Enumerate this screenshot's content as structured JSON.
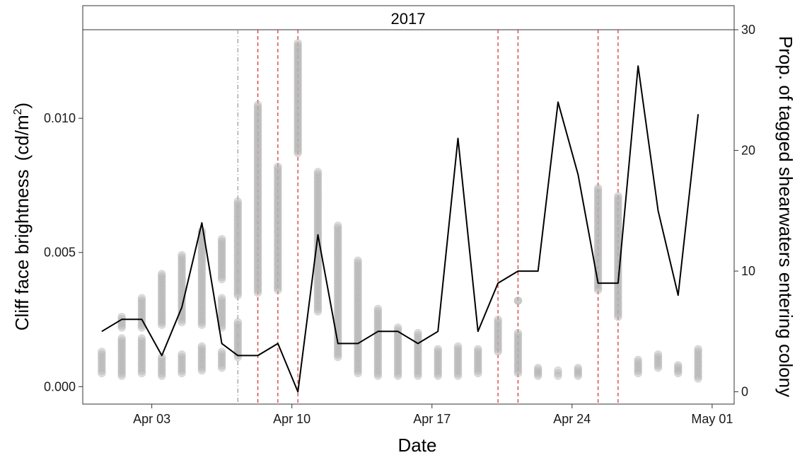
{
  "chart_data": {
    "type": "scatter",
    "facet_label": "2017",
    "xlabel": "Date",
    "ylabel": "Cliff face brightness",
    "ylabel_unit": "(cd/m",
    "ylabel_unit_sup": "2",
    "ylabel_unit_close": ")",
    "y2label": "Prop. of tagged shearwaters entering colony",
    "x_ticks": [
      {
        "day": 3,
        "label": "Apr 03"
      },
      {
        "day": 10,
        "label": "Apr 10"
      },
      {
        "day": 17,
        "label": "Apr 17"
      },
      {
        "day": 24,
        "label": "Apr 24"
      },
      {
        "day": 31,
        "label": "May 01"
      }
    ],
    "y_ticks": [
      {
        "value": 0.0,
        "label": "0.000"
      },
      {
        "value": 0.005,
        "label": "0.005"
      },
      {
        "value": 0.01,
        "label": "0.010"
      }
    ],
    "y2_ticks": [
      {
        "value": 0,
        "label": "0"
      },
      {
        "value": 10,
        "label": "10"
      },
      {
        "value": 20,
        "label": "20"
      },
      {
        "value": 30,
        "label": "30"
      }
    ],
    "xlim": [
      -0.45,
      32.1
    ],
    "ylim": [
      -0.00065,
      0.0133
    ],
    "y2lim": [
      -1.02,
      30
    ],
    "grid": false,
    "vlines": [
      {
        "day": 7.3,
        "color": "#999999",
        "style": "dashdot"
      },
      {
        "day": 8.3,
        "color": "#d62728",
        "style": "dashed"
      },
      {
        "day": 9.3,
        "color": "#d62728",
        "style": "dashed"
      },
      {
        "day": 10.3,
        "color": "#d62728",
        "style": "dashed"
      },
      {
        "day": 20.3,
        "color": "#d62728",
        "style": "dashed"
      },
      {
        "day": 21.3,
        "color": "#d62728",
        "style": "dashed"
      },
      {
        "day": 25.3,
        "color": "#d62728",
        "style": "dashed"
      },
      {
        "day": 26.3,
        "color": "#d62728",
        "style": "dashed"
      }
    ],
    "series": [
      {
        "type": "scatter",
        "axis": "left",
        "color": "#b3b3b3",
        "points_by_day": [
          {
            "day": 0.5,
            "groups": [
              [
                0.0005,
                0.0013
              ]
            ]
          },
          {
            "day": 1.5,
            "groups": [
              [
                0.0004,
                0.0018
              ],
              [
                0.0022,
                0.0026
              ]
            ]
          },
          {
            "day": 2.5,
            "groups": [
              [
                0.0005,
                0.0018
              ],
              [
                0.0022,
                0.0033
              ]
            ]
          },
          {
            "day": 3.5,
            "groups": [
              [
                0.0004,
                0.0011
              ],
              [
                0.0023,
                0.0042
              ]
            ]
          },
          {
            "day": 4.5,
            "groups": [
              [
                0.0005,
                0.0012
              ],
              [
                0.0024,
                0.0049
              ]
            ]
          },
          {
            "day": 5.5,
            "groups": [
              [
                0.0006,
                0.0015
              ],
              [
                0.0023,
                0.0058
              ]
            ]
          },
          {
            "day": 6.5,
            "groups": [
              [
                0.0007,
                0.0013
              ],
              [
                0.0022,
                0.0033
              ],
              [
                0.004,
                0.0055
              ]
            ]
          },
          {
            "day": 7.3,
            "groups": [
              [
                0.0011,
                0.0024
              ],
              [
                0.0034,
                0.0069
              ]
            ]
          },
          {
            "day": 8.3,
            "groups": [
              [
                0.0035,
                0.0105
              ]
            ]
          },
          {
            "day": 9.3,
            "groups": [
              [
                0.0036,
                0.0082
              ]
            ]
          },
          {
            "day": 10.3,
            "groups": [
              [
                0.0087,
                0.0128
              ]
            ]
          },
          {
            "day": 11.3,
            "groups": [
              [
                0.0028,
                0.008
              ]
            ]
          },
          {
            "day": 12.3,
            "groups": [
              [
                0.0011,
                0.006
              ]
            ]
          },
          {
            "day": 13.3,
            "groups": [
              [
                0.0005,
                0.0047
              ]
            ]
          },
          {
            "day": 14.3,
            "groups": [
              [
                0.0004,
                0.0029
              ]
            ]
          },
          {
            "day": 15.3,
            "groups": [
              [
                0.0004,
                0.0022
              ]
            ]
          },
          {
            "day": 16.3,
            "groups": [
              [
                0.0004,
                0.002
              ]
            ]
          },
          {
            "day": 17.3,
            "groups": [
              [
                0.0004,
                0.0014
              ]
            ]
          },
          {
            "day": 18.3,
            "groups": [
              [
                0.0004,
                0.0015
              ]
            ]
          },
          {
            "day": 19.3,
            "groups": [
              [
                0.0005,
                0.0014
              ]
            ]
          },
          {
            "day": 20.3,
            "groups": [
              [
                0.0013,
                0.0025
              ]
            ]
          },
          {
            "day": 21.3,
            "groups": [
              [
                0.0005,
                0.002
              ],
              [
                0.0032,
                0.0032
              ]
            ]
          },
          {
            "day": 22.3,
            "groups": [
              [
                0.0004,
                0.0007
              ]
            ]
          },
          {
            "day": 23.3,
            "groups": [
              [
                0.0004,
                0.0006
              ]
            ]
          },
          {
            "day": 24.3,
            "groups": [
              [
                0.0004,
                0.0007
              ]
            ]
          },
          {
            "day": 25.3,
            "groups": [
              [
                0.0036,
                0.0074
              ]
            ]
          },
          {
            "day": 26.3,
            "groups": [
              [
                0.0026,
                0.0071
              ]
            ]
          },
          {
            "day": 27.3,
            "groups": [
              [
                0.0005,
                0.001
              ]
            ]
          },
          {
            "day": 28.3,
            "groups": [
              [
                0.0007,
                0.0012
              ]
            ]
          },
          {
            "day": 29.3,
            "groups": [
              [
                0.0005,
                0.0008
              ]
            ]
          },
          {
            "day": 30.3,
            "groups": [
              [
                0.0003,
                0.0014
              ]
            ]
          }
        ]
      },
      {
        "type": "line",
        "axis": "right",
        "color": "#000000",
        "x": [
          0.5,
          1.5,
          2.5,
          3.5,
          4.5,
          5.5,
          6.5,
          7.3,
          8.3,
          9.3,
          10.3,
          11.3,
          12.3,
          13.3,
          14.3,
          15.3,
          16.3,
          17.3,
          18.3,
          19.3,
          20.3,
          21.3,
          22.3,
          23.3,
          24.3,
          25.3,
          26.3,
          27.3,
          28.3,
          29.3,
          30.3
        ],
        "y": [
          5,
          6,
          6,
          3,
          7,
          14,
          4,
          3,
          3,
          4,
          0,
          13,
          4,
          4,
          5,
          5,
          4,
          5,
          21,
          5,
          9,
          10,
          10,
          24,
          18,
          9,
          9,
          27,
          15,
          8,
          23
        ]
      }
    ]
  }
}
